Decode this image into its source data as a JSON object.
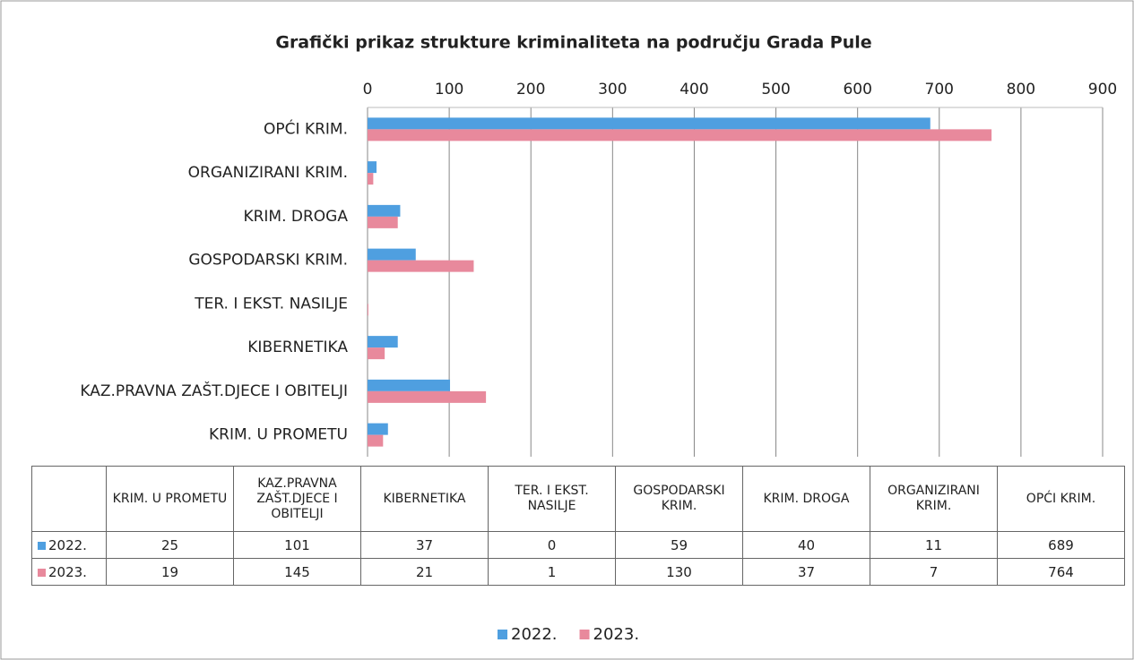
{
  "chart_data": {
    "type": "bar",
    "orientation": "horizontal",
    "title": "Grafički prikaz strukture kriminaliteta na području Grada Pule",
    "categories": [
      "KRIM. U PROMETU",
      "KAZ.PRAVNA ZAŠT.DJECE I OBITELJI",
      "KIBERNETIKA",
      "TER. I EKST. NASILJE",
      "GOSPODARSKI KRIM.",
      "KRIM. DROGA",
      "ORGANIZIRANI KRIM.",
      "OPĆI KRIM."
    ],
    "series": [
      {
        "name": "2022.",
        "color": "#4f9fe0",
        "values": [
          25,
          101,
          37,
          0,
          59,
          40,
          11,
          689
        ]
      },
      {
        "name": "2023.",
        "color": "#e8899c",
        "values": [
          19,
          145,
          21,
          1,
          130,
          37,
          7,
          764
        ]
      }
    ],
    "xlim": [
      0,
      900
    ],
    "xticks": [
      0,
      100,
      200,
      300,
      400,
      500,
      600,
      700,
      800,
      900
    ],
    "grid": true,
    "legend": "bottom"
  }
}
